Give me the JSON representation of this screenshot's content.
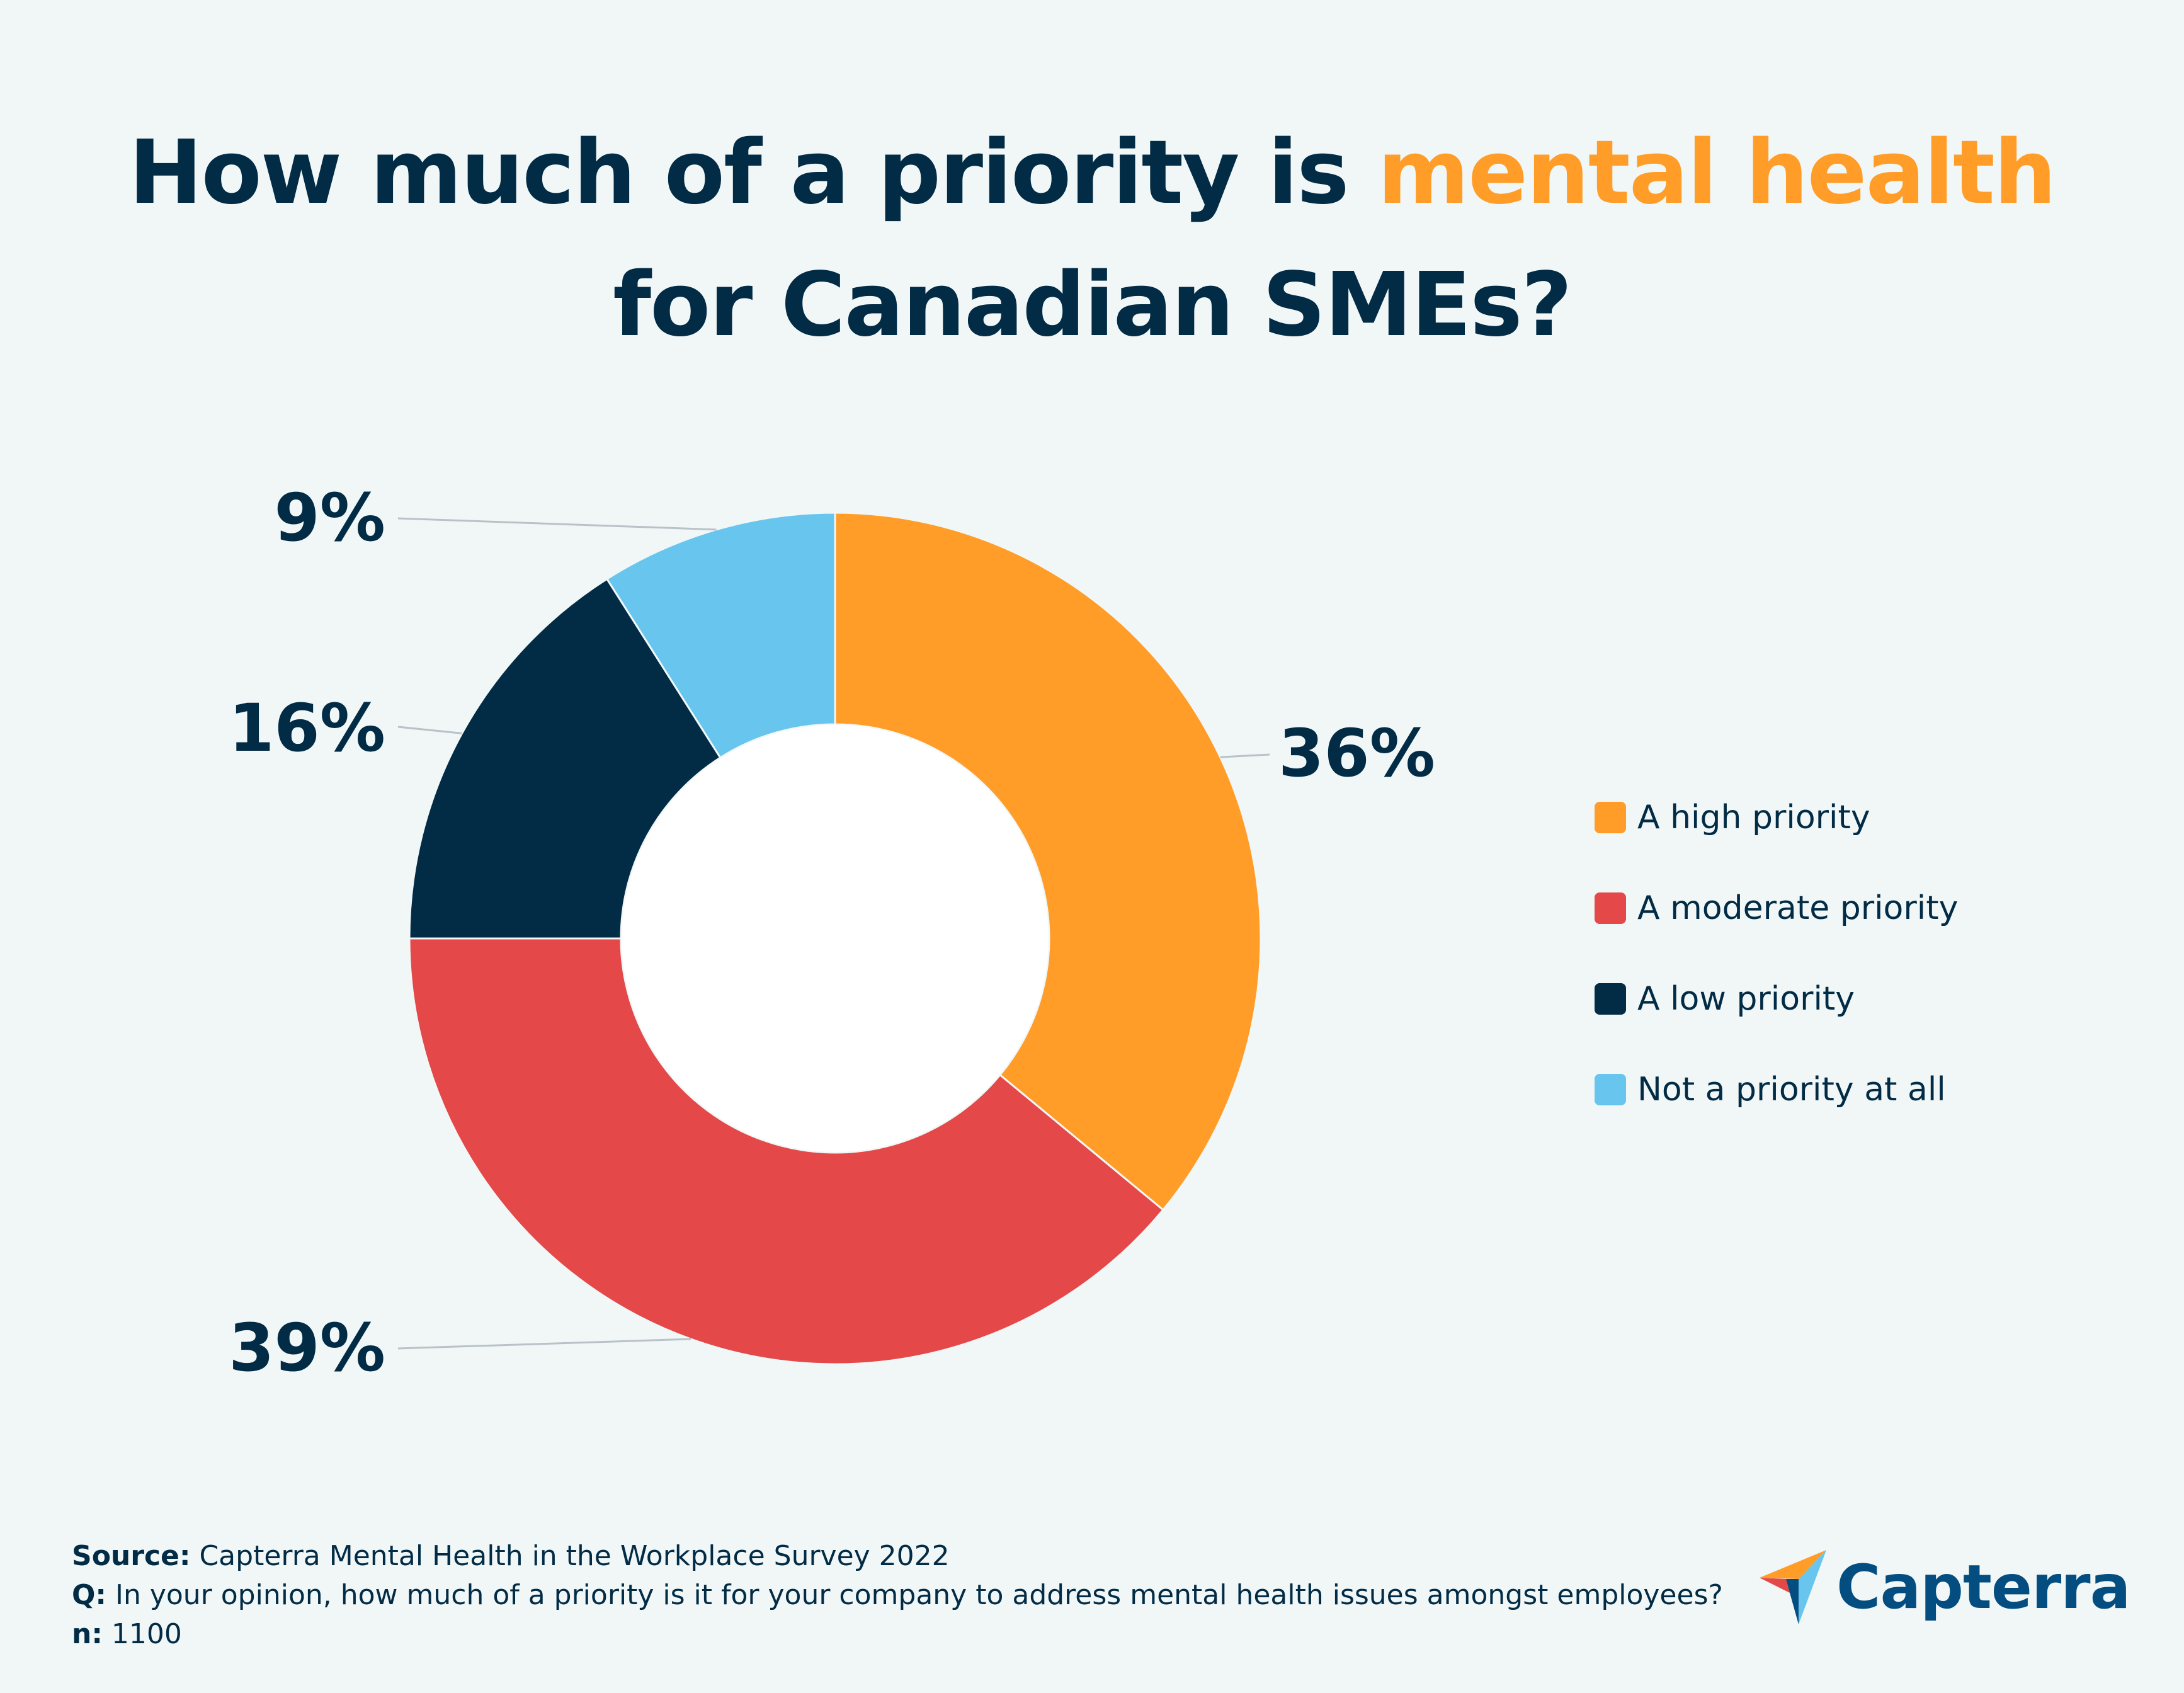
{
  "title": {
    "line1_prefix": "How much of a priority is ",
    "line1_highlight": "mental health",
    "line2": "for Canadian SMEs?"
  },
  "colors": {
    "background": "#f1f7f7",
    "text": "#022b45",
    "accent": "#ff9d28",
    "high": "#ff9d28",
    "moderate": "#e44848",
    "low": "#022b45",
    "not": "#68c5ee"
  },
  "chart_data": {
    "type": "pie",
    "variant": "donut",
    "title": "How much of a priority is mental health for Canadian SMEs?",
    "categories": [
      "A high priority",
      "A moderate priority",
      "A low priority",
      "Not a priority at all"
    ],
    "values": [
      36,
      39,
      16,
      9
    ],
    "value_labels": [
      "36%",
      "39%",
      "16%",
      "9%"
    ],
    "unit": "%",
    "legend_position": "right"
  },
  "legend": {
    "items": [
      {
        "label": "A high priority"
      },
      {
        "label": "A moderate priority"
      },
      {
        "label": "A low priority"
      },
      {
        "label": "Not a priority at all"
      }
    ]
  },
  "footer": {
    "source_label": "Source:",
    "source_text": " Capterra Mental Health in the Workplace Survey 2022",
    "q_label": "Q:",
    "q_text": " In your opinion, how much of a priority is it for your company to address mental health issues amongst employees?",
    "n_label": "n:",
    "n_text": " 1100"
  },
  "logo": {
    "text": "Capterra",
    "icon": "capterra-arrow-icon"
  }
}
